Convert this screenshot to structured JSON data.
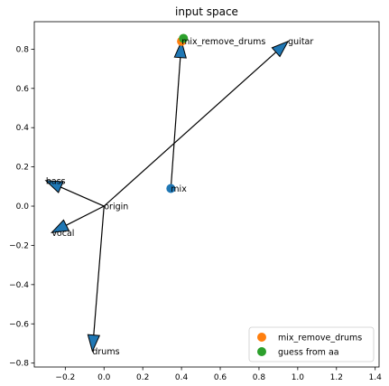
{
  "chart_data": {
    "type": "scatter",
    "title": "input space",
    "xlabel": "",
    "ylabel": "",
    "xlim": [
      -0.36,
      1.42
    ],
    "ylim": [
      -0.82,
      0.94
    ],
    "xticks": [
      -0.2,
      0.0,
      0.2,
      0.4,
      0.6,
      0.8,
      1.0,
      1.2,
      1.4
    ],
    "yticks": [
      -0.8,
      -0.6,
      -0.4,
      -0.2,
      0.0,
      0.2,
      0.4,
      0.6,
      0.8
    ],
    "xtick_labels": [
      "−0.2",
      "0.0",
      "0.2",
      "0.4",
      "0.6",
      "0.8",
      "1.0",
      "1.2",
      "1.4"
    ],
    "ytick_labels": [
      "−0.8",
      "−0.6",
      "−0.4",
      "−0.2",
      "0.0",
      "0.2",
      "0.4",
      "0.6",
      "0.8"
    ],
    "grid": false,
    "legend_position": "bottom-right",
    "points": [
      {
        "label": "mix",
        "x": 0.345,
        "y": 0.09,
        "color": "#1f77b4"
      },
      {
        "label": "mix_remove_drums",
        "x": 0.4,
        "y": 0.84,
        "color": "#ff7f0e"
      },
      {
        "label": "guess from aa",
        "x": 0.41,
        "y": 0.855,
        "color": "#2ca02c"
      }
    ],
    "arrows": [
      {
        "from": [
          0.0,
          0.0
        ],
        "to": [
          -0.3,
          0.13
        ],
        "color": "#1f77b4"
      },
      {
        "from": [
          0.0,
          0.0
        ],
        "to": [
          -0.27,
          -0.135
        ],
        "color": "#1f77b4"
      },
      {
        "from": [
          0.0,
          0.0
        ],
        "to": [
          -0.06,
          -0.74
        ],
        "color": "#1f77b4"
      },
      {
        "from": [
          0.0,
          0.0
        ],
        "to": [
          0.95,
          0.84
        ],
        "color": "#1f77b4"
      },
      {
        "from": [
          0.345,
          0.09
        ],
        "to": [
          0.4,
          0.84
        ],
        "color": "#1f77b4"
      }
    ],
    "annotations": [
      {
        "text": "origin",
        "x": 0.0,
        "y": 0.0
      },
      {
        "text": "bass",
        "x": -0.3,
        "y": 0.13
      },
      {
        "text": "vocal",
        "x": -0.27,
        "y": -0.135
      },
      {
        "text": "drums",
        "x": -0.06,
        "y": -0.74
      },
      {
        "text": "guitar",
        "x": 0.95,
        "y": 0.84
      },
      {
        "text": "mix",
        "x": 0.345,
        "y": 0.09
      },
      {
        "text": "mix_remove_drums",
        "x": 0.4,
        "y": 0.84
      }
    ],
    "legend": [
      {
        "name": "mix_remove_drums",
        "color": "#ff7f0e"
      },
      {
        "name": "guess from aa",
        "color": "#2ca02c"
      }
    ]
  }
}
